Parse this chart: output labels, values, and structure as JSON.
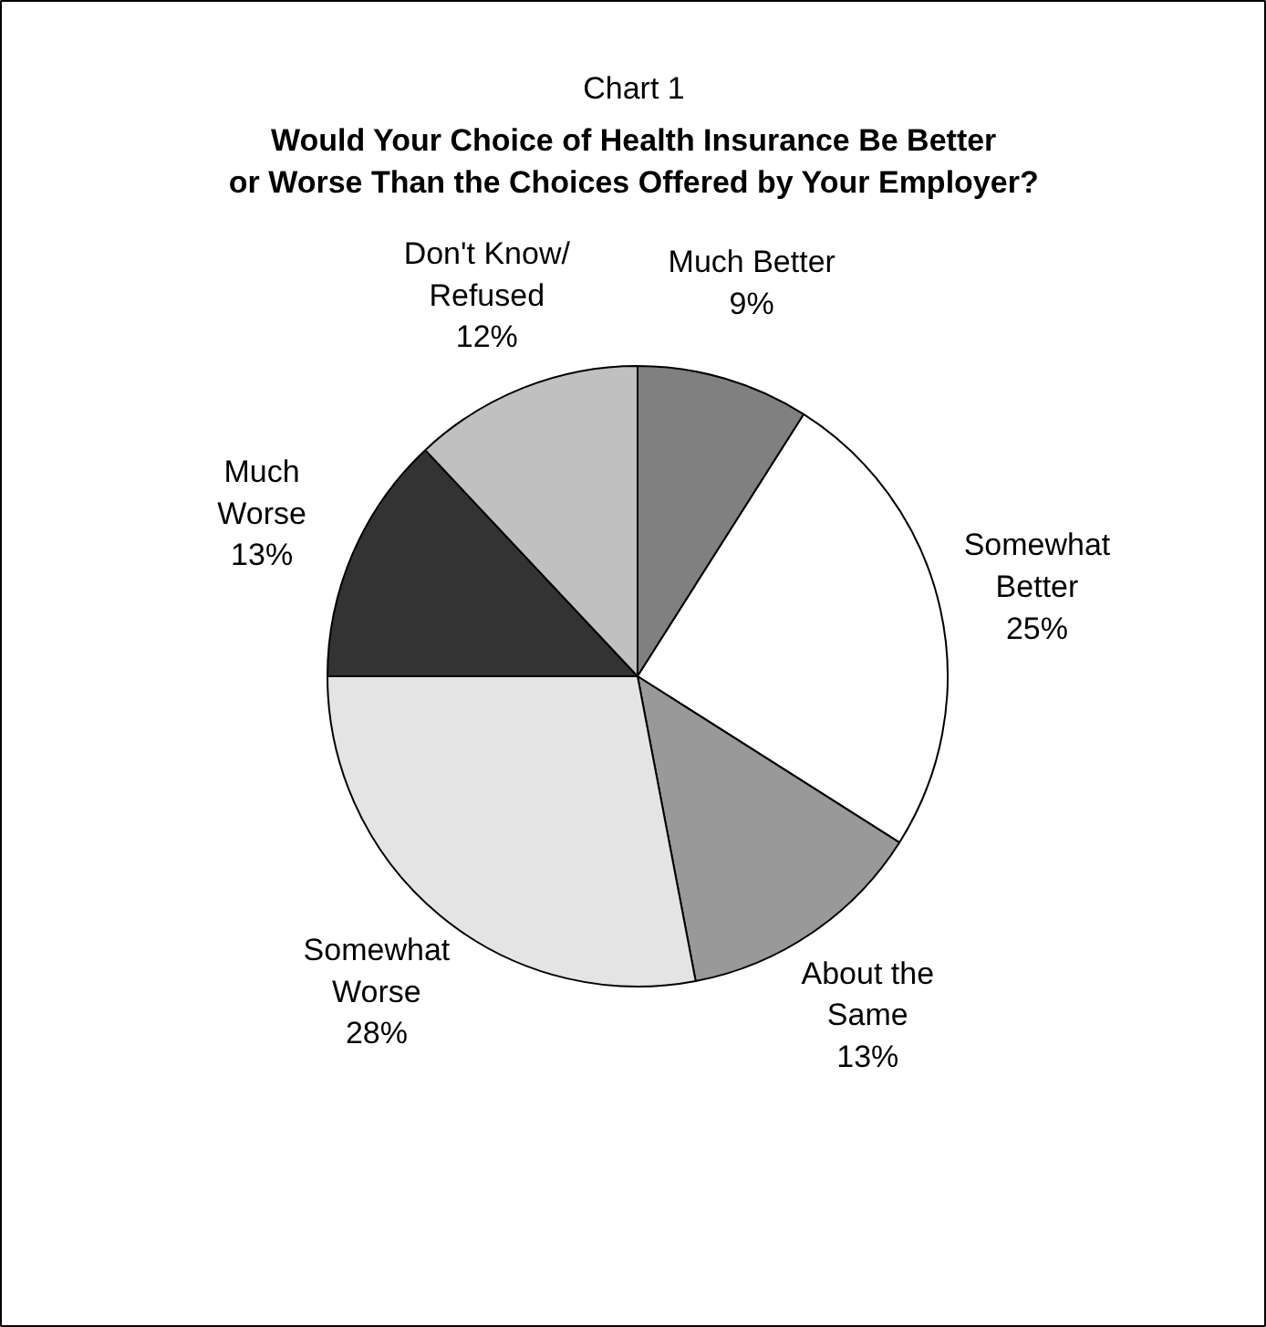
{
  "chart_data": {
    "type": "pie",
    "title": "Chart 1",
    "subtitle": "Would Your Choice of Health Insurance Be Better\nor Worse Than the Choices Offered by Your Employer?",
    "categories": [
      "Much Better",
      "Somewhat\nBetter",
      "About the\nSame",
      "Somewhat\nWorse",
      "Much\nWorse",
      "Don't Know/\nRefused"
    ],
    "values": [
      9,
      25,
      13,
      28,
      13,
      12
    ],
    "colors": [
      "#808080",
      "#ffffff",
      "#999999",
      "#e4e4e4",
      "#333333",
      "#c0c0c0"
    ],
    "value_labels": [
      "9%",
      "25%",
      "13%",
      "28%",
      "13%",
      "12%"
    ]
  }
}
